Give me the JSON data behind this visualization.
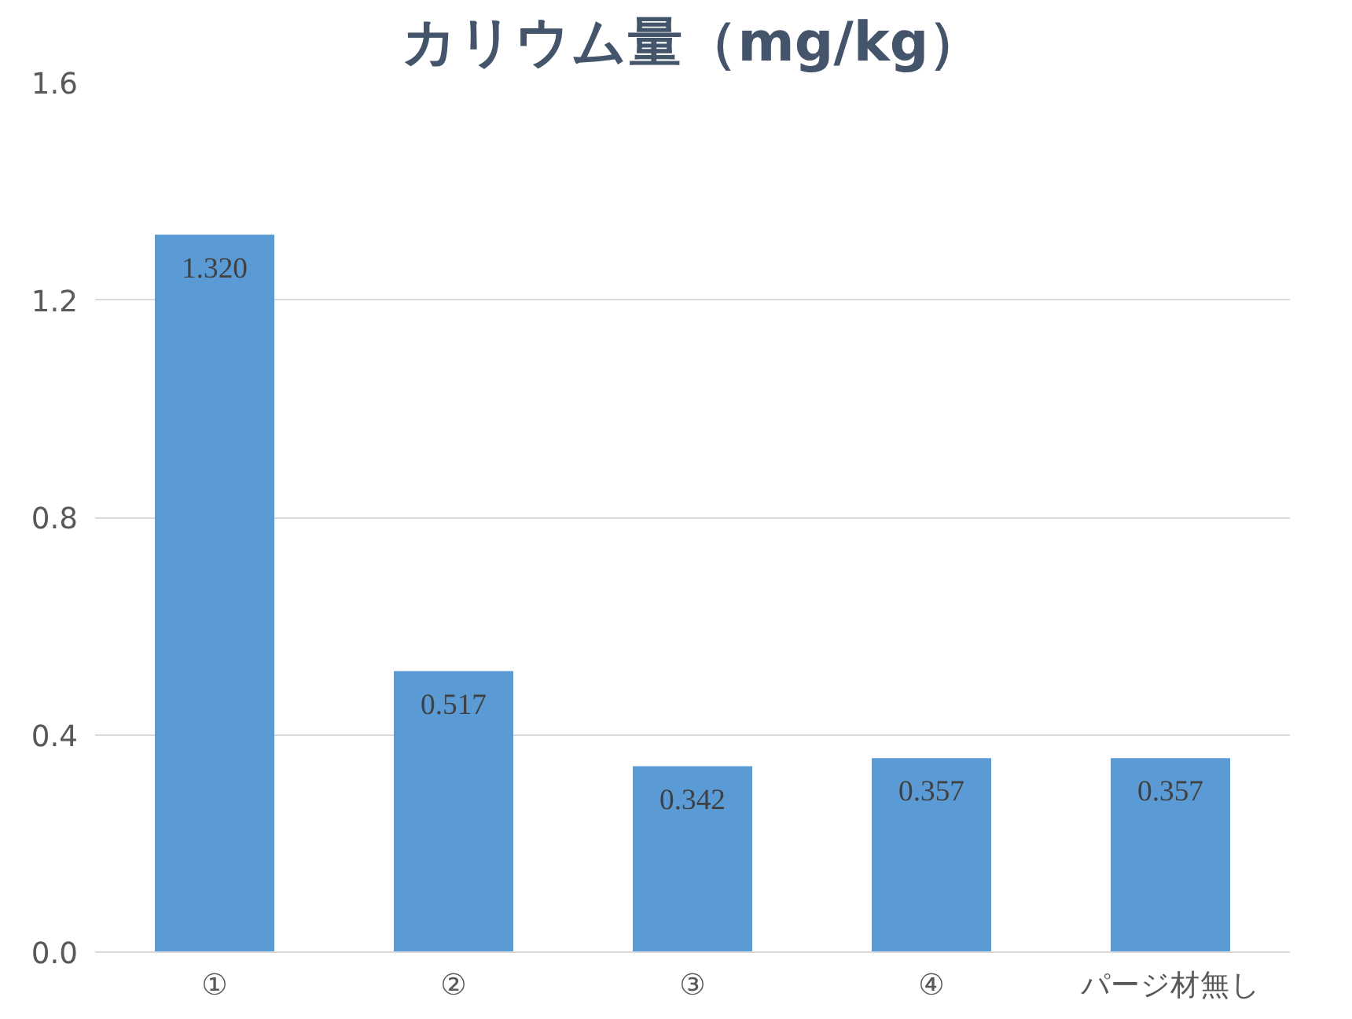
{
  "chart_data": {
    "type": "bar",
    "title": "カリウム量（mg/kg）",
    "categories": [
      "①",
      "②",
      "③",
      "④",
      "パージ材無し"
    ],
    "values": [
      1.32,
      0.517,
      0.342,
      0.357,
      0.357
    ],
    "value_labels": [
      "1.320",
      "0.517",
      "0.342",
      "0.357",
      "0.357"
    ],
    "color": "#5b9bd5",
    "ylim": [
      0,
      1.6
    ],
    "yticks": [
      {
        "value": 0,
        "label": "0.0"
      },
      {
        "value": 0.4,
        "label": "0.4"
      },
      {
        "value": 0.8,
        "label": "0.8"
      },
      {
        "value": 1.2,
        "label": "1.2"
      },
      {
        "value": 1.6,
        "label": "1.6"
      }
    ],
    "grid": "y"
  }
}
